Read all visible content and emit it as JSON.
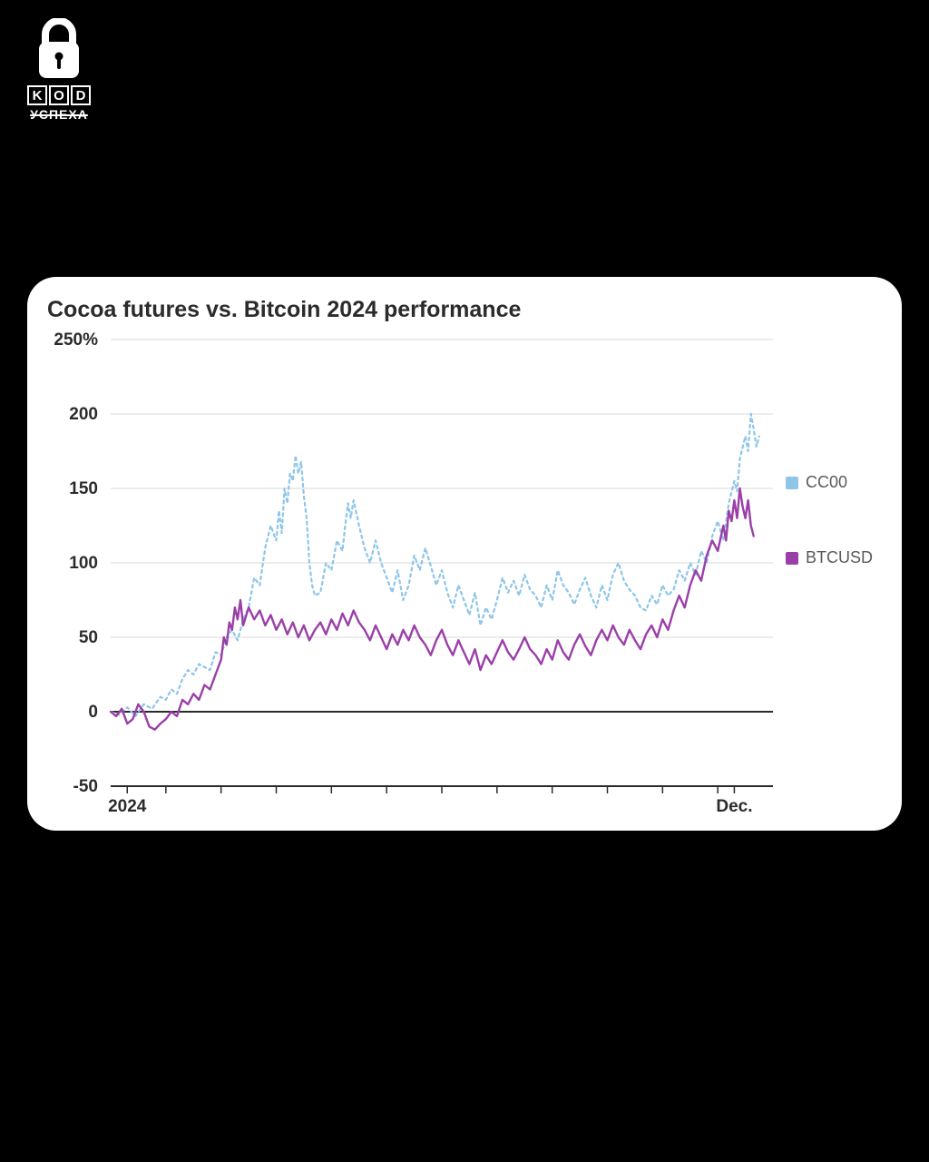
{
  "logo": {
    "letters": [
      "K",
      "O",
      "D"
    ],
    "subtext": "УСПЕХА"
  },
  "chart": {
    "type": "line",
    "title": "Cocoa futures vs. Bitcoin 2024 performance",
    "title_fontsize": 25,
    "title_color": "#2b2b2b",
    "background_color": "#ffffff",
    "card_radius": 32,
    "ylim": [
      -50,
      250
    ],
    "ytick_step": 50,
    "yticks": [
      {
        "v": 250,
        "label": "250%"
      },
      {
        "v": 200,
        "label": "200"
      },
      {
        "v": 150,
        "label": "150"
      },
      {
        "v": 100,
        "label": "100"
      },
      {
        "v": 50,
        "label": "50"
      },
      {
        "v": 0,
        "label": "0"
      },
      {
        "v": -50,
        "label": "-50"
      }
    ],
    "ylabel_fontsize": 19,
    "xlim": [
      0,
      12
    ],
    "xticks_major": [
      {
        "v": 0.3,
        "label": "2024"
      },
      {
        "v": 11.3,
        "label": "Dec."
      }
    ],
    "xticks_minor_positions": [
      1,
      2,
      3,
      4,
      5,
      6,
      7,
      8,
      9,
      10,
      11
    ],
    "xlabel_fontsize": 19,
    "grid_color": "#d8d8d8",
    "axis_color": "#2b2b2b",
    "zero_line_width": 2,
    "legend": [
      {
        "key": "cc00",
        "label": "CC00",
        "color": "#8ec5e8"
      },
      {
        "key": "btcusd",
        "label": "BTCUSD",
        "color": "#9b3fa8"
      }
    ],
    "legend_fontsize": 18,
    "legend_text_color": "#5a5a5a",
    "series": {
      "cc00": {
        "label": "CC00",
        "color": "#8ec5e8",
        "line_width": 2.2,
        "dash": "3,4",
        "data": [
          [
            0.0,
            0
          ],
          [
            0.15,
            -2
          ],
          [
            0.3,
            3
          ],
          [
            0.45,
            -3
          ],
          [
            0.6,
            5
          ],
          [
            0.75,
            2
          ],
          [
            0.9,
            10
          ],
          [
            1.0,
            8
          ],
          [
            1.1,
            15
          ],
          [
            1.2,
            12
          ],
          [
            1.3,
            22
          ],
          [
            1.4,
            28
          ],
          [
            1.5,
            25
          ],
          [
            1.6,
            32
          ],
          [
            1.7,
            30
          ],
          [
            1.8,
            28
          ],
          [
            1.9,
            40
          ],
          [
            2.0,
            38
          ],
          [
            2.1,
            50
          ],
          [
            2.2,
            55
          ],
          [
            2.3,
            48
          ],
          [
            2.4,
            62
          ],
          [
            2.5,
            70
          ],
          [
            2.6,
            90
          ],
          [
            2.7,
            85
          ],
          [
            2.8,
            110
          ],
          [
            2.9,
            125
          ],
          [
            3.0,
            115
          ],
          [
            3.05,
            135
          ],
          [
            3.1,
            120
          ],
          [
            3.15,
            150
          ],
          [
            3.2,
            140
          ],
          [
            3.25,
            160
          ],
          [
            3.3,
            155
          ],
          [
            3.35,
            172
          ],
          [
            3.4,
            160
          ],
          [
            3.45,
            168
          ],
          [
            3.5,
            145
          ],
          [
            3.55,
            130
          ],
          [
            3.6,
            100
          ],
          [
            3.65,
            85
          ],
          [
            3.7,
            78
          ],
          [
            3.8,
            80
          ],
          [
            3.9,
            100
          ],
          [
            4.0,
            95
          ],
          [
            4.1,
            115
          ],
          [
            4.2,
            108
          ],
          [
            4.25,
            125
          ],
          [
            4.3,
            140
          ],
          [
            4.35,
            130
          ],
          [
            4.4,
            142
          ],
          [
            4.5,
            125
          ],
          [
            4.6,
            110
          ],
          [
            4.7,
            100
          ],
          [
            4.8,
            115
          ],
          [
            4.9,
            100
          ],
          [
            5.0,
            90
          ],
          [
            5.1,
            80
          ],
          [
            5.2,
            95
          ],
          [
            5.3,
            75
          ],
          [
            5.4,
            85
          ],
          [
            5.5,
            105
          ],
          [
            5.6,
            95
          ],
          [
            5.7,
            110
          ],
          [
            5.8,
            98
          ],
          [
            5.9,
            85
          ],
          [
            6.0,
            95
          ],
          [
            6.1,
            80
          ],
          [
            6.2,
            70
          ],
          [
            6.3,
            85
          ],
          [
            6.4,
            75
          ],
          [
            6.5,
            65
          ],
          [
            6.6,
            80
          ],
          [
            6.7,
            58
          ],
          [
            6.8,
            70
          ],
          [
            6.9,
            62
          ],
          [
            7.0,
            75
          ],
          [
            7.1,
            90
          ],
          [
            7.2,
            80
          ],
          [
            7.3,
            88
          ],
          [
            7.4,
            78
          ],
          [
            7.5,
            92
          ],
          [
            7.6,
            82
          ],
          [
            7.7,
            78
          ],
          [
            7.8,
            70
          ],
          [
            7.9,
            85
          ],
          [
            8.0,
            75
          ],
          [
            8.1,
            95
          ],
          [
            8.2,
            85
          ],
          [
            8.3,
            80
          ],
          [
            8.4,
            72
          ],
          [
            8.5,
            82
          ],
          [
            8.6,
            90
          ],
          [
            8.7,
            78
          ],
          [
            8.8,
            70
          ],
          [
            8.9,
            85
          ],
          [
            9.0,
            75
          ],
          [
            9.1,
            92
          ],
          [
            9.2,
            100
          ],
          [
            9.3,
            88
          ],
          [
            9.4,
            82
          ],
          [
            9.5,
            78
          ],
          [
            9.6,
            70
          ],
          [
            9.7,
            68
          ],
          [
            9.8,
            78
          ],
          [
            9.9,
            72
          ],
          [
            10.0,
            85
          ],
          [
            10.1,
            78
          ],
          [
            10.2,
            82
          ],
          [
            10.3,
            95
          ],
          [
            10.4,
            88
          ],
          [
            10.5,
            100
          ],
          [
            10.6,
            92
          ],
          [
            10.7,
            108
          ],
          [
            10.8,
            100
          ],
          [
            10.9,
            118
          ],
          [
            11.0,
            128
          ],
          [
            11.1,
            115
          ],
          [
            11.2,
            140
          ],
          [
            11.3,
            155
          ],
          [
            11.35,
            148
          ],
          [
            11.4,
            170
          ],
          [
            11.5,
            185
          ],
          [
            11.55,
            175
          ],
          [
            11.6,
            200
          ],
          [
            11.65,
            190
          ],
          [
            11.7,
            178
          ],
          [
            11.75,
            185
          ]
        ]
      },
      "btcusd": {
        "label": "BTCUSD",
        "color": "#9b3fa8",
        "line_width": 2.4,
        "dash": null,
        "data": [
          [
            0.0,
            0
          ],
          [
            0.1,
            -3
          ],
          [
            0.2,
            2
          ],
          [
            0.3,
            -8
          ],
          [
            0.4,
            -5
          ],
          [
            0.5,
            5
          ],
          [
            0.6,
            0
          ],
          [
            0.7,
            -10
          ],
          [
            0.8,
            -12
          ],
          [
            0.9,
            -8
          ],
          [
            1.0,
            -5
          ],
          [
            1.1,
            0
          ],
          [
            1.2,
            -3
          ],
          [
            1.3,
            8
          ],
          [
            1.4,
            5
          ],
          [
            1.5,
            12
          ],
          [
            1.6,
            8
          ],
          [
            1.7,
            18
          ],
          [
            1.8,
            15
          ],
          [
            1.9,
            25
          ],
          [
            2.0,
            35
          ],
          [
            2.05,
            50
          ],
          [
            2.1,
            45
          ],
          [
            2.15,
            60
          ],
          [
            2.2,
            55
          ],
          [
            2.25,
            70
          ],
          [
            2.3,
            62
          ],
          [
            2.35,
            75
          ],
          [
            2.4,
            58
          ],
          [
            2.5,
            70
          ],
          [
            2.6,
            62
          ],
          [
            2.7,
            68
          ],
          [
            2.8,
            58
          ],
          [
            2.9,
            65
          ],
          [
            3.0,
            55
          ],
          [
            3.1,
            62
          ],
          [
            3.2,
            52
          ],
          [
            3.3,
            60
          ],
          [
            3.4,
            50
          ],
          [
            3.5,
            58
          ],
          [
            3.6,
            48
          ],
          [
            3.7,
            55
          ],
          [
            3.8,
            60
          ],
          [
            3.9,
            52
          ],
          [
            4.0,
            62
          ],
          [
            4.1,
            55
          ],
          [
            4.2,
            66
          ],
          [
            4.3,
            58
          ],
          [
            4.4,
            68
          ],
          [
            4.5,
            60
          ],
          [
            4.6,
            55
          ],
          [
            4.7,
            48
          ],
          [
            4.8,
            58
          ],
          [
            4.9,
            50
          ],
          [
            5.0,
            42
          ],
          [
            5.1,
            52
          ],
          [
            5.2,
            45
          ],
          [
            5.3,
            55
          ],
          [
            5.4,
            48
          ],
          [
            5.5,
            58
          ],
          [
            5.6,
            50
          ],
          [
            5.7,
            45
          ],
          [
            5.8,
            38
          ],
          [
            5.9,
            48
          ],
          [
            6.0,
            55
          ],
          [
            6.1,
            45
          ],
          [
            6.2,
            38
          ],
          [
            6.3,
            48
          ],
          [
            6.4,
            40
          ],
          [
            6.5,
            32
          ],
          [
            6.6,
            42
          ],
          [
            6.7,
            28
          ],
          [
            6.8,
            38
          ],
          [
            6.9,
            32
          ],
          [
            7.0,
            40
          ],
          [
            7.1,
            48
          ],
          [
            7.2,
            40
          ],
          [
            7.3,
            35
          ],
          [
            7.4,
            42
          ],
          [
            7.5,
            50
          ],
          [
            7.6,
            42
          ],
          [
            7.7,
            38
          ],
          [
            7.8,
            32
          ],
          [
            7.9,
            42
          ],
          [
            8.0,
            35
          ],
          [
            8.1,
            48
          ],
          [
            8.2,
            40
          ],
          [
            8.3,
            35
          ],
          [
            8.4,
            45
          ],
          [
            8.5,
            52
          ],
          [
            8.6,
            44
          ],
          [
            8.7,
            38
          ],
          [
            8.8,
            48
          ],
          [
            8.9,
            55
          ],
          [
            9.0,
            48
          ],
          [
            9.1,
            58
          ],
          [
            9.2,
            50
          ],
          [
            9.3,
            45
          ],
          [
            9.4,
            55
          ],
          [
            9.5,
            48
          ],
          [
            9.6,
            42
          ],
          [
            9.7,
            52
          ],
          [
            9.8,
            58
          ],
          [
            9.9,
            50
          ],
          [
            10.0,
            62
          ],
          [
            10.1,
            55
          ],
          [
            10.2,
            68
          ],
          [
            10.3,
            78
          ],
          [
            10.4,
            70
          ],
          [
            10.5,
            85
          ],
          [
            10.6,
            95
          ],
          [
            10.7,
            88
          ],
          [
            10.8,
            105
          ],
          [
            10.9,
            115
          ],
          [
            11.0,
            108
          ],
          [
            11.1,
            125
          ],
          [
            11.15,
            115
          ],
          [
            11.2,
            135
          ],
          [
            11.25,
            128
          ],
          [
            11.3,
            142
          ],
          [
            11.35,
            130
          ],
          [
            11.4,
            150
          ],
          [
            11.45,
            138
          ],
          [
            11.5,
            130
          ],
          [
            11.55,
            142
          ],
          [
            11.6,
            125
          ],
          [
            11.65,
            118
          ]
        ]
      }
    }
  }
}
